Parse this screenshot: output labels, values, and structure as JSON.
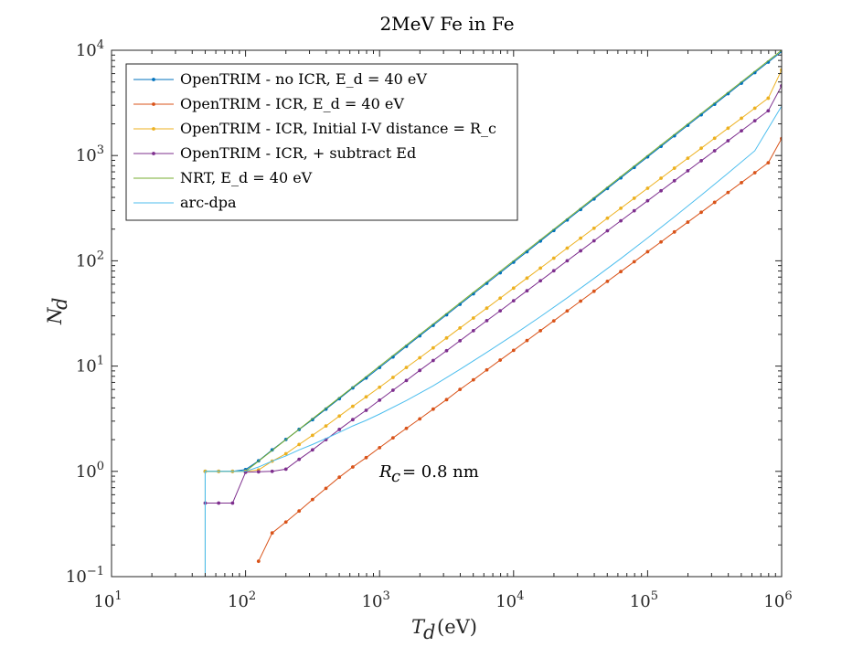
{
  "chart_data": {
    "type": "line",
    "title": "2MeV Fe in Fe",
    "xlabel": "T_d (eV)",
    "ylabel": "N_d",
    "xscale": "log",
    "yscale": "log",
    "xlim": [
      10,
      1000000
    ],
    "ylim": [
      0.1,
      10000
    ],
    "x_tick_values": [
      10,
      100,
      1000,
      10000,
      100000,
      1000000
    ],
    "y_tick_values": [
      0.1,
      1,
      10,
      100,
      1000,
      10000
    ],
    "x_tick_exponents": [
      "1",
      "2",
      "3",
      "4",
      "5",
      "6"
    ],
    "y_tick_exponents": [
      "−1",
      "0",
      "1",
      "2",
      "3",
      "4"
    ],
    "tick_base": "10",
    "grid": false,
    "legend_position": "top-left",
    "annotation": "R_c = 0.8 nm",
    "series": [
      {
        "name": "OpenTRIM - no ICR, E_d = 40 eV",
        "color": "#0072BD",
        "marker": "dot",
        "x": [
          50,
          50,
          63,
          80,
          100,
          125,
          158,
          200,
          251,
          316,
          398,
          501,
          631,
          794,
          1000,
          1259,
          1585,
          1995,
          2512,
          3162,
          3981,
          5012,
          6310,
          7943,
          10000,
          12589,
          15849,
          19953,
          25119,
          31623,
          39811,
          50119,
          63096,
          79433,
          100000,
          125893,
          158489,
          199526,
          251189,
          316228,
          398107,
          501187,
          630957,
          794328,
          1000000
        ],
        "y": [
          0.01,
          1.0,
          1.0,
          1.0,
          1.04,
          1.26,
          1.6,
          2.01,
          2.5,
          3.1,
          3.9,
          4.9,
          6.2,
          7.7,
          9.7,
          12.2,
          15.4,
          19.4,
          24.4,
          30.7,
          38.6,
          48.6,
          61.2,
          77,
          97,
          122,
          154,
          194,
          244,
          307,
          387,
          487,
          613,
          771,
          971,
          1222,
          1539,
          1937,
          2439,
          3070,
          3865,
          4866,
          6126,
          7713,
          9710
        ]
      },
      {
        "name": "OpenTRIM - ICR, E_d = 40 eV",
        "color": "#D95319",
        "marker": "dot",
        "x": [
          125,
          158,
          200,
          251,
          316,
          398,
          501,
          631,
          794,
          1000,
          1259,
          1585,
          1995,
          2512,
          3162,
          3981,
          5012,
          6310,
          7943,
          10000,
          12589,
          15849,
          19953,
          25119,
          31623,
          39811,
          50119,
          63096,
          79433,
          100000,
          125893,
          158489,
          199526,
          251189,
          316228,
          398107,
          501187,
          630957,
          794328,
          1000000
        ],
        "y": [
          0.14,
          0.26,
          0.33,
          0.42,
          0.54,
          0.69,
          0.88,
          1.1,
          1.35,
          1.68,
          2.08,
          2.56,
          3.15,
          3.9,
          4.8,
          6.0,
          7.4,
          9.2,
          11.4,
          14.1,
          17.5,
          21.7,
          26.9,
          33.4,
          41.4,
          51.4,
          63.8,
          79,
          98,
          122,
          151,
          188,
          233,
          289,
          359,
          446,
          553,
          687,
          853,
          1450
        ]
      },
      {
        "name": "OpenTRIM - ICR, Initial I-V distance = R_c",
        "color": "#EDB120",
        "marker": "dot",
        "x": [
          50,
          63,
          80,
          100,
          125,
          158,
          200,
          251,
          316,
          398,
          501,
          631,
          794,
          1000,
          1259,
          1585,
          1995,
          2512,
          3162,
          3981,
          5012,
          6310,
          7943,
          10000,
          12589,
          15849,
          19953,
          25119,
          31623,
          39811,
          50119,
          63096,
          79433,
          100000,
          125893,
          158489,
          199526,
          251189,
          316228,
          398107,
          501187,
          630957,
          794328,
          1000000
        ],
        "y": [
          1.0,
          1.0,
          1.0,
          1.0,
          1.03,
          1.25,
          1.47,
          1.8,
          2.2,
          2.7,
          3.35,
          4.15,
          5.1,
          6.3,
          7.8,
          9.7,
          12,
          14.9,
          18.5,
          23,
          28.6,
          35.5,
          44.2,
          55,
          68.5,
          85.2,
          106,
          132,
          164,
          204,
          254,
          316,
          393,
          489,
          609,
          758,
          943,
          1174,
          1461,
          1818,
          2263,
          2816,
          3505,
          6500
        ]
      },
      {
        "name": "OpenTRIM - ICR, + subtract Ed",
        "color": "#7E2F8E",
        "marker": "dot",
        "x": [
          50,
          63,
          80,
          100,
          125,
          158,
          200,
          251,
          316,
          398,
          501,
          631,
          794,
          1000,
          1259,
          1585,
          1995,
          2512,
          3162,
          3981,
          5012,
          6310,
          7943,
          10000,
          12589,
          15849,
          19953,
          25119,
          31623,
          39811,
          50119,
          63096,
          79433,
          100000,
          125893,
          158489,
          199526,
          251189,
          316228,
          398107,
          501187,
          630957,
          794328,
          1000000
        ],
        "y": [
          0.5,
          0.5,
          0.5,
          0.98,
          0.99,
          1.0,
          1.05,
          1.3,
          1.6,
          2.0,
          2.5,
          3.1,
          3.8,
          4.75,
          5.9,
          7.3,
          9.1,
          11.3,
          14.0,
          17.4,
          21.7,
          27,
          33.5,
          41.7,
          51.9,
          64.6,
          80.4,
          100,
          124.5,
          155,
          193,
          240,
          299,
          372,
          463,
          576,
          717,
          892,
          1110,
          1381,
          1719,
          2139,
          2662,
          4600
        ]
      },
      {
        "name": "NRT, E_d = 40 eV",
        "color": "#77AC30",
        "marker": "none",
        "x": [
          50,
          50,
          80,
          100,
          1000,
          10000,
          100000,
          1000000
        ],
        "y": [
          0.01,
          1.0,
          1.0,
          1.0,
          10,
          100,
          1000,
          10000
        ]
      },
      {
        "name": "arc-dpa",
        "color": "#4DBEEE",
        "marker": "none",
        "x": [
          50,
          50,
          80,
          100,
          125,
          158,
          200,
          251,
          316,
          398,
          501,
          631,
          794,
          1000,
          1585,
          2512,
          3981,
          6310,
          10000,
          15849,
          25119,
          39811,
          63096,
          100000,
          158489,
          251189,
          398107,
          630957,
          1000000
        ],
        "y": [
          0.01,
          1.0,
          1.0,
          1.0,
          1.1,
          1.25,
          1.4,
          1.6,
          1.8,
          2.05,
          2.35,
          2.7,
          3.05,
          3.5,
          4.7,
          6.5,
          9.3,
          13.5,
          19.8,
          29.5,
          44.5,
          68,
          105,
          165,
          262,
          420,
          680,
          1110,
          2950
        ]
      }
    ]
  }
}
